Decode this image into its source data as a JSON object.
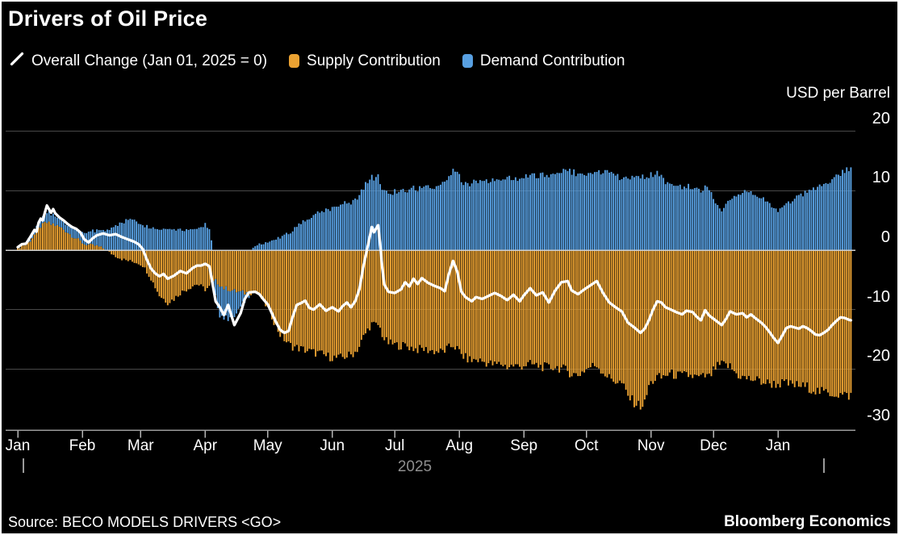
{
  "title": "Drivers of Oil Price",
  "legend": {
    "items": [
      {
        "label": "Overall Change (Jan 01, 2025 = 0)",
        "marker": "line-icon",
        "color": "#ffffff"
      },
      {
        "label": "Supply Contribution",
        "marker": "bar-swatch",
        "color": "#EBA232"
      },
      {
        "label": "Demand Contribution",
        "marker": "bar-swatch",
        "color": "#58A0E2"
      }
    ]
  },
  "axis": {
    "unit_label": "USD per Barrel",
    "y_ticks": [
      20,
      10,
      0,
      -10,
      -20,
      -30
    ],
    "months": [
      "Jan",
      "Feb",
      "Mar",
      "Apr",
      "May",
      "Jun",
      "Jul",
      "Aug",
      "Sep",
      "Oct",
      "Nov",
      "Dec",
      "Jan"
    ],
    "month_start_days": [
      0,
      31,
      59,
      90,
      120,
      151,
      181,
      212,
      243,
      273,
      304,
      334,
      365
    ],
    "year_label": "2025"
  },
  "footer": {
    "source": "Source: BECO MODELS DRIVERS <GO>",
    "brand": "Bloomberg Economics"
  },
  "chart_data": {
    "type": "bar",
    "subtype": "stacked-bars-with-line-overlay",
    "title": "Drivers of Oil Price",
    "ylabel": "USD per Barrel",
    "ylim": [
      -30,
      24
    ],
    "x_unit": "days since Jan 01, 2025",
    "x_range_days": [
      0,
      400
    ],
    "grid": "horizontal",
    "legend_position": "top",
    "series": [
      {
        "name": "Overall Change (Jan 01, 2025 = 0)",
        "type": "line",
        "color": "#ffffff"
      },
      {
        "name": "Supply Contribution",
        "type": "bar",
        "color": "#EBA232"
      },
      {
        "name": "Demand Contribution",
        "type": "bar",
        "color": "#58A0E2"
      }
    ],
    "note": "keypoints = [day, supply, demand, overall]; daily bars/line are linear interpolation between keypoints",
    "keypoints": [
      [
        0,
        0.3,
        0.2,
        0.5
      ],
      [
        2,
        0.8,
        0.3,
        1.0
      ],
      [
        4,
        0.9,
        0.4,
        1.1
      ],
      [
        6,
        1.6,
        0.5,
        2.2
      ],
      [
        8,
        2.6,
        0.7,
        3.4
      ],
      [
        9,
        2.9,
        0.8,
        3.1
      ],
      [
        10,
        3.6,
        1.0,
        4.6
      ],
      [
        11,
        4.0,
        1.2,
        5.3
      ],
      [
        12,
        4.2,
        1.3,
        5.0
      ],
      [
        13,
        4.5,
        1.5,
        6.3
      ],
      [
        14,
        4.6,
        1.6,
        7.5
      ],
      [
        15,
        4.5,
        1.6,
        6.9
      ],
      [
        16,
        4.3,
        1.5,
        6.3
      ],
      [
        17,
        4.4,
        1.5,
        6.9
      ],
      [
        18,
        4.2,
        1.4,
        6.2
      ],
      [
        20,
        3.9,
        1.3,
        5.5
      ],
      [
        22,
        3.5,
        1.3,
        5.0
      ],
      [
        24,
        3.0,
        1.3,
        4.4
      ],
      [
        26,
        2.4,
        1.4,
        3.9
      ],
      [
        28,
        2.0,
        1.5,
        3.6
      ],
      [
        30,
        1.5,
        1.7,
        3.0
      ],
      [
        32,
        1.0,
        1.9,
        1.8
      ],
      [
        34,
        0.9,
        2.1,
        1.3
      ],
      [
        36,
        0.8,
        2.3,
        2.0
      ],
      [
        38,
        0.7,
        2.5,
        2.5
      ],
      [
        41,
        0.3,
        3.1,
        2.8
      ],
      [
        44,
        -0.4,
        3.5,
        2.5
      ],
      [
        47,
        -1.0,
        4.1,
        2.7
      ],
      [
        50,
        -1.5,
        4.7,
        2.2
      ],
      [
        53,
        -1.8,
        5.1,
        1.8
      ],
      [
        56,
        -2.0,
        5.0,
        1.4
      ],
      [
        58,
        -2.2,
        4.7,
        1.0
      ],
      [
        60,
        -2.6,
        4.3,
        0.2
      ],
      [
        62,
        -3.6,
        4.0,
        -1.6
      ],
      [
        64,
        -4.8,
        3.8,
        -3.1
      ],
      [
        66,
        -6.2,
        3.6,
        -3.9
      ],
      [
        68,
        -7.6,
        3.5,
        -4.4
      ],
      [
        70,
        -8.2,
        3.6,
        -4.0
      ],
      [
        72,
        -8.8,
        3.7,
        -4.8
      ],
      [
        75,
        -8.2,
        3.6,
        -4.3
      ],
      [
        78,
        -7.2,
        3.5,
        -3.5
      ],
      [
        81,
        -6.6,
        3.4,
        -3.9
      ],
      [
        84,
        -6.0,
        3.6,
        -3.0
      ],
      [
        86,
        -5.7,
        3.8,
        -2.6
      ],
      [
        88,
        -6.1,
        4.0,
        -2.6
      ],
      [
        90,
        -6.6,
        4.3,
        -2.3
      ],
      [
        92,
        -6.2,
        3.8,
        -2.7
      ],
      [
        93,
        -5.6,
        1.5,
        -4.6
      ],
      [
        95,
        -5.2,
        -3.0,
        -8.6
      ],
      [
        97,
        -5.8,
        -5.0,
        -9.6
      ],
      [
        99,
        -6.4,
        -5.4,
        -10.9
      ],
      [
        101,
        -6.5,
        -4.8,
        -9.2
      ],
      [
        104,
        -6.9,
        -4.4,
        -12.6
      ],
      [
        107,
        -7.1,
        -2.4,
        -10.6
      ],
      [
        109,
        -7.2,
        -1.2,
        -8.2
      ],
      [
        111,
        -7.2,
        -0.3,
        -7.1
      ],
      [
        114,
        -7.1,
        0.6,
        -7.0
      ],
      [
        116,
        -7.6,
        1.0,
        -7.4
      ],
      [
        118,
        -8.6,
        1.2,
        -8.3
      ],
      [
        120,
        -9.8,
        1.5,
        -9.1
      ],
      [
        122,
        -11.2,
        1.8,
        -10.6
      ],
      [
        124,
        -12.8,
        2.0,
        -12.1
      ],
      [
        126,
        -14.2,
        2.2,
        -13.4
      ],
      [
        128,
        -15.0,
        2.5,
        -13.9
      ],
      [
        130,
        -15.8,
        2.9,
        -13.6
      ],
      [
        132,
        -16.2,
        3.3,
        -11.2
      ],
      [
        134,
        -16.4,
        3.9,
        -9.2
      ],
      [
        136,
        -16.6,
        4.6,
        -8.9
      ],
      [
        138,
        -16.8,
        5.1,
        -8.5
      ],
      [
        140,
        -17.0,
        5.5,
        -9.7
      ],
      [
        142,
        -17.2,
        6.0,
        -10.0
      ],
      [
        145,
        -17.4,
        6.5,
        -9.1
      ],
      [
        148,
        -17.8,
        6.8,
        -10.2
      ],
      [
        151,
        -18.0,
        7.0,
        -9.6
      ],
      [
        154,
        -18.2,
        7.5,
        -10.3
      ],
      [
        156,
        -18.0,
        8.0,
        -9.4
      ],
      [
        158,
        -17.8,
        8.2,
        -8.8
      ],
      [
        160,
        -17.6,
        8.0,
        -9.6
      ],
      [
        162,
        -17.1,
        8.5,
        -8.6
      ],
      [
        164,
        -16.2,
        9.0,
        -6.6
      ],
      [
        166,
        -14.6,
        10.6,
        -2.6
      ],
      [
        168,
        -13.4,
        11.6,
        0.6
      ],
      [
        170,
        -12.4,
        12.4,
        3.9
      ],
      [
        171,
        -12.5,
        12.0,
        3.0
      ],
      [
        173,
        -12.6,
        12.5,
        4.2
      ],
      [
        174,
        -13.2,
        11.6,
        1.0
      ],
      [
        175,
        -14.2,
        10.6,
        -3.0
      ],
      [
        176,
        -15.0,
        10.0,
        -5.8
      ],
      [
        178,
        -15.6,
        9.6,
        -7.0
      ],
      [
        181,
        -15.9,
        9.8,
        -7.2
      ],
      [
        184,
        -16.1,
        10.0,
        -6.6
      ],
      [
        186,
        -16.0,
        10.2,
        -5.4
      ],
      [
        188,
        -16.3,
        10.1,
        -6.1
      ],
      [
        190,
        -16.5,
        10.5,
        -4.8
      ],
      [
        192,
        -16.7,
        10.3,
        -5.7
      ],
      [
        194,
        -16.6,
        10.6,
        -4.7
      ],
      [
        197,
        -16.8,
        10.8,
        -5.5
      ],
      [
        200,
        -17.0,
        10.6,
        -6.0
      ],
      [
        203,
        -17.1,
        10.9,
        -6.4
      ],
      [
        205,
        -16.9,
        11.1,
        -6.9
      ],
      [
        207,
        -16.4,
        12.6,
        -4.0
      ],
      [
        209,
        -16.0,
        13.6,
        -1.8
      ],
      [
        211,
        -16.6,
        13.0,
        -3.6
      ],
      [
        213,
        -17.6,
        11.6,
        -7.0
      ],
      [
        215,
        -18.1,
        11.1,
        -7.9
      ],
      [
        218,
        -18.6,
        11.3,
        -8.6
      ],
      [
        220,
        -18.4,
        11.5,
        -7.9
      ],
      [
        223,
        -18.7,
        11.4,
        -8.2
      ],
      [
        226,
        -19.0,
        11.7,
        -7.7
      ],
      [
        229,
        -19.3,
        12.0,
        -7.2
      ],
      [
        232,
        -19.1,
        11.9,
        -7.7
      ],
      [
        235,
        -19.6,
        12.0,
        -8.4
      ],
      [
        238,
        -19.4,
        12.2,
        -7.5
      ],
      [
        241,
        -19.6,
        12.1,
        -8.6
      ],
      [
        243,
        -19.3,
        12.3,
        -7.6
      ],
      [
        246,
        -19.2,
        12.5,
        -6.4
      ],
      [
        249,
        -19.4,
        12.4,
        -7.6
      ],
      [
        252,
        -19.6,
        12.6,
        -7.1
      ],
      [
        255,
        -19.8,
        12.7,
        -8.8
      ],
      [
        258,
        -19.6,
        13.0,
        -6.8
      ],
      [
        261,
        -19.9,
        13.4,
        -5.4
      ],
      [
        264,
        -20.3,
        13.6,
        -5.2
      ],
      [
        266,
        -20.8,
        13.2,
        -6.8
      ],
      [
        269,
        -21.0,
        12.9,
        -7.4
      ],
      [
        272,
        -20.2,
        12.4,
        -6.6
      ],
      [
        275,
        -19.6,
        13.0,
        -5.9
      ],
      [
        278,
        -19.3,
        13.5,
        -5.2
      ],
      [
        281,
        -20.5,
        13.2,
        -7.2
      ],
      [
        284,
        -21.5,
        12.8,
        -8.8
      ],
      [
        287,
        -22.0,
        12.4,
        -9.6
      ],
      [
        290,
        -22.4,
        12.2,
        -10.3
      ],
      [
        293,
        -24.6,
        12.1,
        -12.2
      ],
      [
        296,
        -25.6,
        12.0,
        -13.0
      ],
      [
        299,
        -26.2,
        12.2,
        -13.9
      ],
      [
        301,
        -25.8,
        12.4,
        -13.2
      ],
      [
        303,
        -22.8,
        12.6,
        -11.8
      ],
      [
        305,
        -22.0,
        12.8,
        -10.0
      ],
      [
        307,
        -21.4,
        12.9,
        -8.6
      ],
      [
        309,
        -21.5,
        12.7,
        -8.8
      ],
      [
        311,
        -21.0,
        11.6,
        -9.6
      ],
      [
        313,
        -20.8,
        11.0,
        -9.9
      ],
      [
        316,
        -21.0,
        10.8,
        -10.4
      ],
      [
        319,
        -21.2,
        10.6,
        -10.8
      ],
      [
        321,
        -21.0,
        10.9,
        -10.2
      ],
      [
        324,
        -21.2,
        10.6,
        -10.4
      ],
      [
        326,
        -21.4,
        10.2,
        -11.2
      ],
      [
        328,
        -21.5,
        10.0,
        -11.8
      ],
      [
        330,
        -21.2,
        10.8,
        -10.1
      ],
      [
        332,
        -21.4,
        10.4,
        -11.0
      ],
      [
        335,
        -19.8,
        8.0,
        -11.8
      ],
      [
        338,
        -19.2,
        6.8,
        -12.6
      ],
      [
        340,
        -19.4,
        7.4,
        -11.6
      ],
      [
        342,
        -19.6,
        8.8,
        -10.3
      ],
      [
        345,
        -20.8,
        9.4,
        -10.8
      ],
      [
        348,
        -21.4,
        9.8,
        -10.6
      ],
      [
        350,
        -21.6,
        10.0,
        -11.3
      ],
      [
        352,
        -21.7,
        9.6,
        -10.8
      ],
      [
        354,
        -21.8,
        9.4,
        -11.4
      ],
      [
        357,
        -22.1,
        8.8,
        -12.2
      ],
      [
        359,
        -22.3,
        8.2,
        -12.9
      ],
      [
        361,
        -22.4,
        7.6,
        -13.8
      ],
      [
        363,
        -22.5,
        7.0,
        -14.8
      ],
      [
        365,
        -22.5,
        6.6,
        -15.6
      ],
      [
        367,
        -22.4,
        6.9,
        -14.4
      ],
      [
        369,
        -22.5,
        7.5,
        -13.1
      ],
      [
        371,
        -22.6,
        8.1,
        -12.8
      ],
      [
        373,
        -22.7,
        8.6,
        -13.0
      ],
      [
        375,
        -22.8,
        9.0,
        -13.2
      ],
      [
        377,
        -22.9,
        9.4,
        -12.8
      ],
      [
        379,
        -23.0,
        9.8,
        -13.1
      ],
      [
        381,
        -23.3,
        10.1,
        -13.6
      ],
      [
        383,
        -23.6,
        10.4,
        -14.2
      ],
      [
        385,
        -23.8,
        10.6,
        -14.3
      ],
      [
        387,
        -23.9,
        10.9,
        -13.9
      ],
      [
        389,
        -24.0,
        11.2,
        -13.4
      ],
      [
        391,
        -24.1,
        11.8,
        -12.6
      ],
      [
        393,
        -24.2,
        12.4,
        -11.9
      ],
      [
        395,
        -24.3,
        13.0,
        -11.3
      ],
      [
        397,
        -24.4,
        13.4,
        -11.4
      ],
      [
        399,
        -24.5,
        13.8,
        -11.7
      ],
      [
        400,
        -24.4,
        13.6,
        -11.8
      ]
    ]
  },
  "colors": {
    "background": "#000000",
    "supply_bar": "#EBA232",
    "demand_bar": "#58A0E2",
    "overall_line": "#ffffff",
    "gridline": "#484848",
    "zero_line": "#cfcfcf",
    "axis_line": "#9a9a9a",
    "year_text": "#8f8f8f"
  }
}
